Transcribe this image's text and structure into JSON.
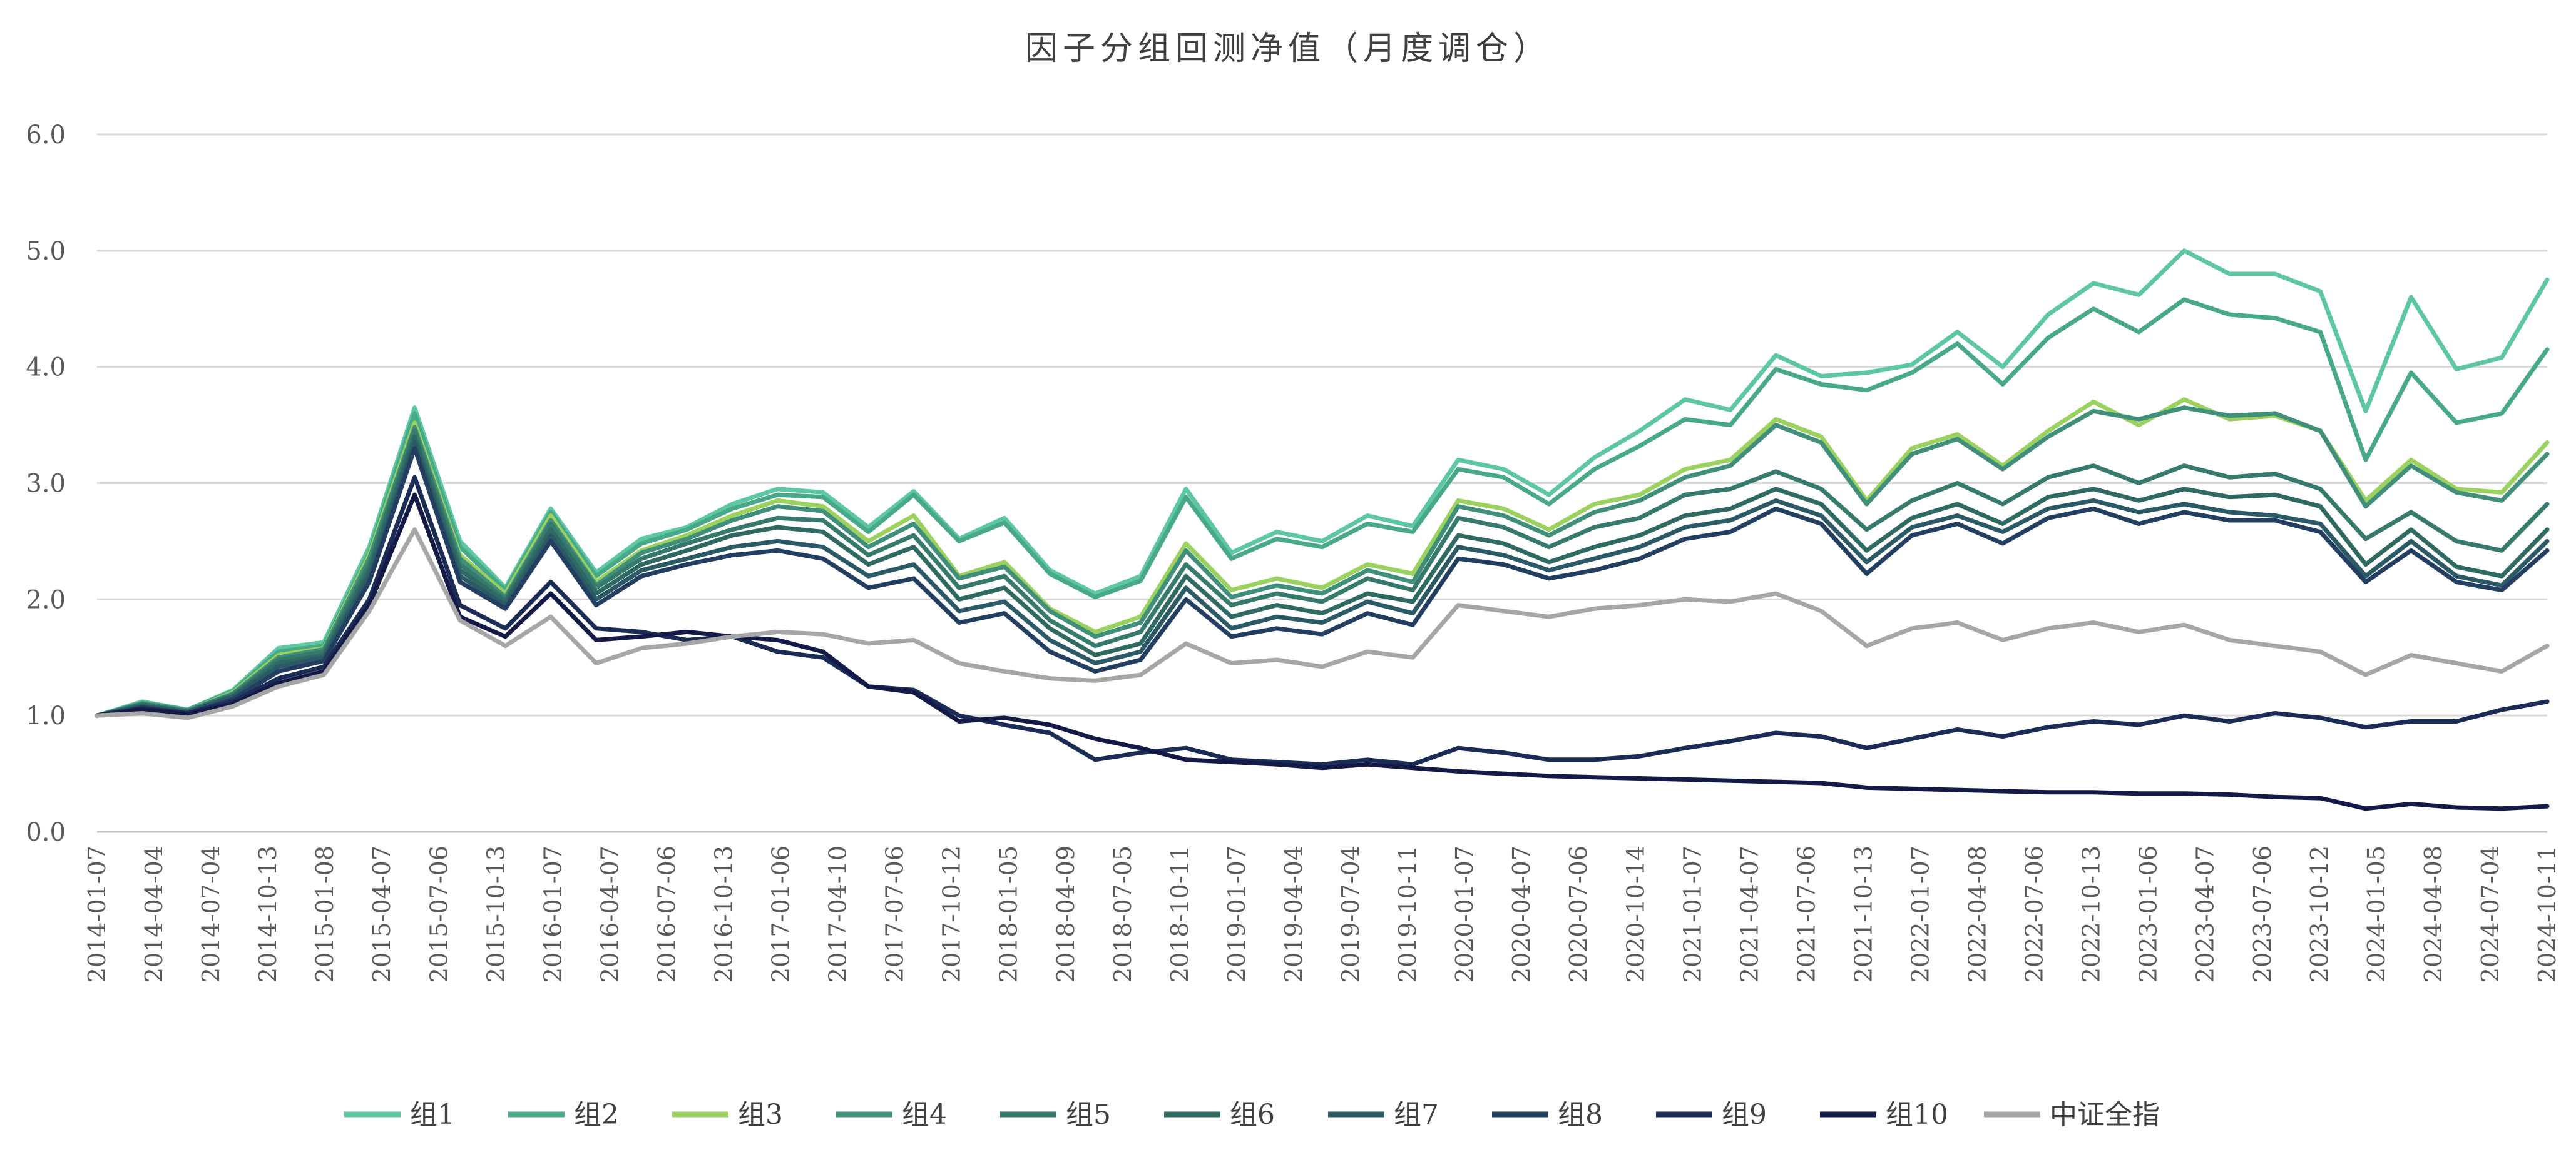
{
  "chart_data": {
    "type": "line",
    "title": "因子分组回测净值（月度调仓）",
    "xlabel": "",
    "ylabel": "",
    "ylim": [
      0,
      6
    ],
    "yticks": [
      "0.0",
      "1.0",
      "2.0",
      "3.0",
      "4.0",
      "5.0",
      "6.0"
    ],
    "grid": true,
    "legend_position": "bottom",
    "xtick_labels": [
      "2014-01-07",
      "2014-04-04",
      "2014-07-04",
      "2014-10-13",
      "2015-01-08",
      "2015-04-07",
      "2015-07-06",
      "2015-10-13",
      "2016-01-07",
      "2016-04-07",
      "2016-07-06",
      "2016-10-13",
      "2017-01-06",
      "2017-04-10",
      "2017-07-06",
      "2017-10-12",
      "2018-01-05",
      "2018-04-09",
      "2018-07-05",
      "2018-10-11",
      "2019-01-07",
      "2019-04-04",
      "2019-07-04",
      "2019-10-11",
      "2020-01-07",
      "2020-04-07",
      "2020-07-06",
      "2020-10-14",
      "2021-01-07",
      "2021-04-07",
      "2021-07-06",
      "2021-10-13",
      "2022-01-07",
      "2022-04-08",
      "2022-07-06",
      "2022-10-13",
      "2023-01-06",
      "2023-04-07",
      "2023-07-06",
      "2023-10-12",
      "2024-01-05",
      "2024-04-08",
      "2024-07-04",
      "2024-10-11"
    ],
    "series": [
      {
        "name": "组1",
        "color": "#5cc7a0",
        "values": [
          1.0,
          1.12,
          1.05,
          1.22,
          1.58,
          1.63,
          2.45,
          3.65,
          2.5,
          2.1,
          2.78,
          2.23,
          2.52,
          2.62,
          2.82,
          2.95,
          2.92,
          2.62,
          2.93,
          2.52,
          2.7,
          2.25,
          2.05,
          2.2,
          2.95,
          2.4,
          2.58,
          2.5,
          2.72,
          2.63,
          3.2,
          3.12,
          2.9,
          3.22,
          3.45,
          3.72,
          3.63,
          4.1,
          3.92,
          3.95,
          4.02,
          4.3,
          4.0,
          4.45,
          4.72,
          4.62,
          5.0,
          4.8,
          4.8,
          4.65,
          3.62,
          4.6,
          3.98,
          4.08,
          4.75
        ]
      },
      {
        "name": "组2",
        "color": "#47a88a",
        "values": [
          1.0,
          1.11,
          1.05,
          1.21,
          1.55,
          1.6,
          2.4,
          3.6,
          2.45,
          2.08,
          2.75,
          2.2,
          2.48,
          2.6,
          2.78,
          2.9,
          2.88,
          2.58,
          2.9,
          2.5,
          2.66,
          2.22,
          2.02,
          2.16,
          2.88,
          2.35,
          2.52,
          2.45,
          2.65,
          2.58,
          3.12,
          3.05,
          2.82,
          3.12,
          3.32,
          3.55,
          3.5,
          3.98,
          3.85,
          3.8,
          3.95,
          4.2,
          3.85,
          4.25,
          4.5,
          4.3,
          4.58,
          4.45,
          4.42,
          4.3,
          3.2,
          3.95,
          3.52,
          3.6,
          4.15
        ]
      },
      {
        "name": "组3",
        "color": "#9bd15f",
        "values": [
          1.0,
          1.1,
          1.04,
          1.2,
          1.52,
          1.58,
          2.38,
          3.52,
          2.38,
          2.05,
          2.72,
          2.15,
          2.42,
          2.55,
          2.72,
          2.85,
          2.8,
          2.5,
          2.72,
          2.2,
          2.32,
          1.92,
          1.72,
          1.85,
          2.48,
          2.08,
          2.18,
          2.1,
          2.3,
          2.22,
          2.85,
          2.78,
          2.6,
          2.82,
          2.9,
          3.12,
          3.2,
          3.55,
          3.4,
          2.85,
          3.3,
          3.42,
          3.15,
          3.45,
          3.7,
          3.5,
          3.72,
          3.55,
          3.58,
          3.45,
          2.85,
          3.2,
          2.95,
          2.92,
          3.35
        ]
      },
      {
        "name": "组4",
        "color": "#3f8f7a",
        "values": [
          1.0,
          1.1,
          1.04,
          1.19,
          1.5,
          1.57,
          2.35,
          3.48,
          2.35,
          2.02,
          2.68,
          2.12,
          2.4,
          2.52,
          2.68,
          2.8,
          2.76,
          2.45,
          2.65,
          2.18,
          2.28,
          1.9,
          1.68,
          1.8,
          2.42,
          2.02,
          2.12,
          2.05,
          2.25,
          2.15,
          2.8,
          2.72,
          2.55,
          2.75,
          2.85,
          3.05,
          3.15,
          3.5,
          3.35,
          2.82,
          3.25,
          3.38,
          3.12,
          3.4,
          3.62,
          3.55,
          3.65,
          3.58,
          3.6,
          3.45,
          2.8,
          3.15,
          2.92,
          2.85,
          3.25
        ]
      },
      {
        "name": "组5",
        "color": "#357a6c",
        "values": [
          1.0,
          1.1,
          1.04,
          1.18,
          1.48,
          1.55,
          2.3,
          3.45,
          2.3,
          2.0,
          2.65,
          2.1,
          2.35,
          2.48,
          2.6,
          2.7,
          2.68,
          2.38,
          2.55,
          2.1,
          2.2,
          1.82,
          1.6,
          1.72,
          2.3,
          1.95,
          2.05,
          1.98,
          2.18,
          2.08,
          2.7,
          2.62,
          2.45,
          2.62,
          2.7,
          2.9,
          2.95,
          3.1,
          2.95,
          2.6,
          2.85,
          3.0,
          2.82,
          3.05,
          3.15,
          3.0,
          3.15,
          3.05,
          3.08,
          2.95,
          2.52,
          2.75,
          2.5,
          2.42,
          2.82
        ]
      },
      {
        "name": "组6",
        "color": "#2f6a62",
        "values": [
          1.0,
          1.09,
          1.03,
          1.17,
          1.45,
          1.52,
          2.25,
          3.4,
          2.25,
          1.98,
          2.6,
          2.05,
          2.3,
          2.42,
          2.55,
          2.62,
          2.58,
          2.3,
          2.45,
          2.0,
          2.1,
          1.75,
          1.52,
          1.62,
          2.2,
          1.85,
          1.95,
          1.88,
          2.05,
          1.98,
          2.55,
          2.48,
          2.32,
          2.45,
          2.55,
          2.72,
          2.78,
          2.95,
          2.82,
          2.42,
          2.7,
          2.82,
          2.65,
          2.88,
          2.95,
          2.85,
          2.95,
          2.88,
          2.9,
          2.8,
          2.3,
          2.6,
          2.28,
          2.2,
          2.6
        ]
      },
      {
        "name": "组7",
        "color": "#2b5a66",
        "values": [
          1.0,
          1.08,
          1.03,
          1.16,
          1.42,
          1.5,
          2.2,
          3.35,
          2.2,
          1.95,
          2.55,
          2.0,
          2.25,
          2.35,
          2.45,
          2.5,
          2.45,
          2.2,
          2.3,
          1.9,
          1.98,
          1.65,
          1.45,
          1.55,
          2.1,
          1.75,
          1.85,
          1.8,
          1.98,
          1.88,
          2.45,
          2.38,
          2.25,
          2.35,
          2.45,
          2.62,
          2.68,
          2.85,
          2.72,
          2.32,
          2.62,
          2.72,
          2.58,
          2.78,
          2.85,
          2.75,
          2.82,
          2.75,
          2.72,
          2.65,
          2.2,
          2.5,
          2.2,
          2.12,
          2.5
        ]
      },
      {
        "name": "组8",
        "color": "#223f61",
        "values": [
          1.0,
          1.07,
          1.02,
          1.14,
          1.38,
          1.47,
          2.15,
          3.3,
          2.15,
          1.92,
          2.5,
          1.95,
          2.2,
          2.3,
          2.38,
          2.42,
          2.35,
          2.1,
          2.18,
          1.8,
          1.88,
          1.55,
          1.38,
          1.48,
          2.0,
          1.68,
          1.75,
          1.7,
          1.88,
          1.78,
          2.35,
          2.3,
          2.18,
          2.25,
          2.35,
          2.52,
          2.58,
          2.78,
          2.65,
          2.22,
          2.55,
          2.65,
          2.48,
          2.7,
          2.78,
          2.65,
          2.75,
          2.68,
          2.68,
          2.58,
          2.15,
          2.42,
          2.15,
          2.08,
          2.42
        ]
      },
      {
        "name": "组9",
        "color": "#1a2b56",
        "values": [
          1.0,
          1.06,
          1.02,
          1.12,
          1.32,
          1.42,
          2.0,
          3.05,
          1.95,
          1.75,
          2.15,
          1.75,
          1.72,
          1.65,
          1.68,
          1.55,
          1.5,
          1.25,
          1.22,
          1.0,
          0.92,
          0.85,
          0.62,
          0.68,
          0.72,
          0.62,
          0.6,
          0.58,
          0.62,
          0.58,
          0.72,
          0.68,
          0.62,
          0.62,
          0.65,
          0.72,
          0.78,
          0.85,
          0.82,
          0.72,
          0.8,
          0.88,
          0.82,
          0.9,
          0.95,
          0.92,
          1.0,
          0.95,
          1.02,
          0.98,
          0.9,
          0.95,
          0.95,
          1.05,
          1.12
        ]
      },
      {
        "name": "组10",
        "color": "#141a47",
        "values": [
          1.0,
          1.05,
          1.01,
          1.1,
          1.28,
          1.38,
          1.95,
          2.9,
          1.85,
          1.68,
          2.05,
          1.65,
          1.68,
          1.72,
          1.68,
          1.65,
          1.55,
          1.25,
          1.2,
          0.95,
          0.98,
          0.92,
          0.8,
          0.72,
          0.62,
          0.6,
          0.58,
          0.55,
          0.58,
          0.55,
          0.52,
          0.5,
          0.48,
          0.47,
          0.46,
          0.45,
          0.44,
          0.43,
          0.42,
          0.38,
          0.37,
          0.36,
          0.35,
          0.34,
          0.34,
          0.33,
          0.33,
          0.32,
          0.3,
          0.29,
          0.2,
          0.24,
          0.21,
          0.2,
          0.22
        ]
      },
      {
        "name": "中证全指",
        "color": "#a6a6a6",
        "values": [
          1.0,
          1.02,
          0.98,
          1.08,
          1.25,
          1.35,
          1.9,
          2.6,
          1.82,
          1.6,
          1.85,
          1.45,
          1.58,
          1.62,
          1.68,
          1.72,
          1.7,
          1.62,
          1.65,
          1.45,
          1.38,
          1.32,
          1.3,
          1.35,
          1.62,
          1.45,
          1.48,
          1.42,
          1.55,
          1.5,
          1.95,
          1.9,
          1.85,
          1.92,
          1.95,
          2.0,
          1.98,
          2.05,
          1.9,
          1.6,
          1.75,
          1.8,
          1.65,
          1.75,
          1.8,
          1.72,
          1.78,
          1.65,
          1.6,
          1.55,
          1.35,
          1.52,
          1.45,
          1.38,
          1.6
        ]
      }
    ]
  }
}
